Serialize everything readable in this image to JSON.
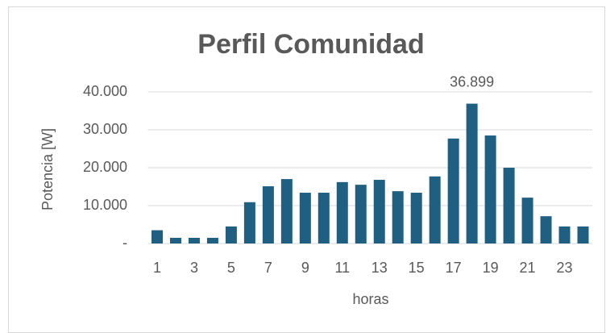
{
  "chart_data": {
    "type": "bar",
    "title": "Perfil Comunidad",
    "y_label": "Potencia [W]",
    "x_label": "horas",
    "categories": [
      "1",
      null,
      "3",
      null,
      "5",
      null,
      "7",
      null,
      "9",
      null,
      "11",
      null,
      "13",
      null,
      "15",
      null,
      "17",
      null,
      "19",
      null,
      "21",
      null,
      "23",
      null
    ],
    "values": [
      3500,
      1500,
      1500,
      1500,
      4500,
      10900,
      15100,
      17000,
      13400,
      13400,
      16200,
      15500,
      16800,
      13800,
      13400,
      17700,
      27700,
      36899,
      28500,
      20000,
      12100,
      7200,
      4500,
      4500
    ],
    "value_labels": [
      null,
      null,
      null,
      null,
      null,
      null,
      null,
      null,
      null,
      null,
      null,
      null,
      null,
      null,
      null,
      null,
      null,
      "36.899",
      null,
      null,
      null,
      null,
      null,
      null
    ],
    "color": "#1f5f82",
    "ylim": [
      0,
      40000
    ],
    "yticks": [
      {
        "value": 0,
        "label": "-"
      },
      {
        "value": 10000,
        "label": "10.000"
      },
      {
        "value": 20000,
        "label": "20.000"
      },
      {
        "value": 30000,
        "label": "30.000"
      },
      {
        "value": 40000,
        "label": "40.000"
      }
    ],
    "grid": true
  }
}
